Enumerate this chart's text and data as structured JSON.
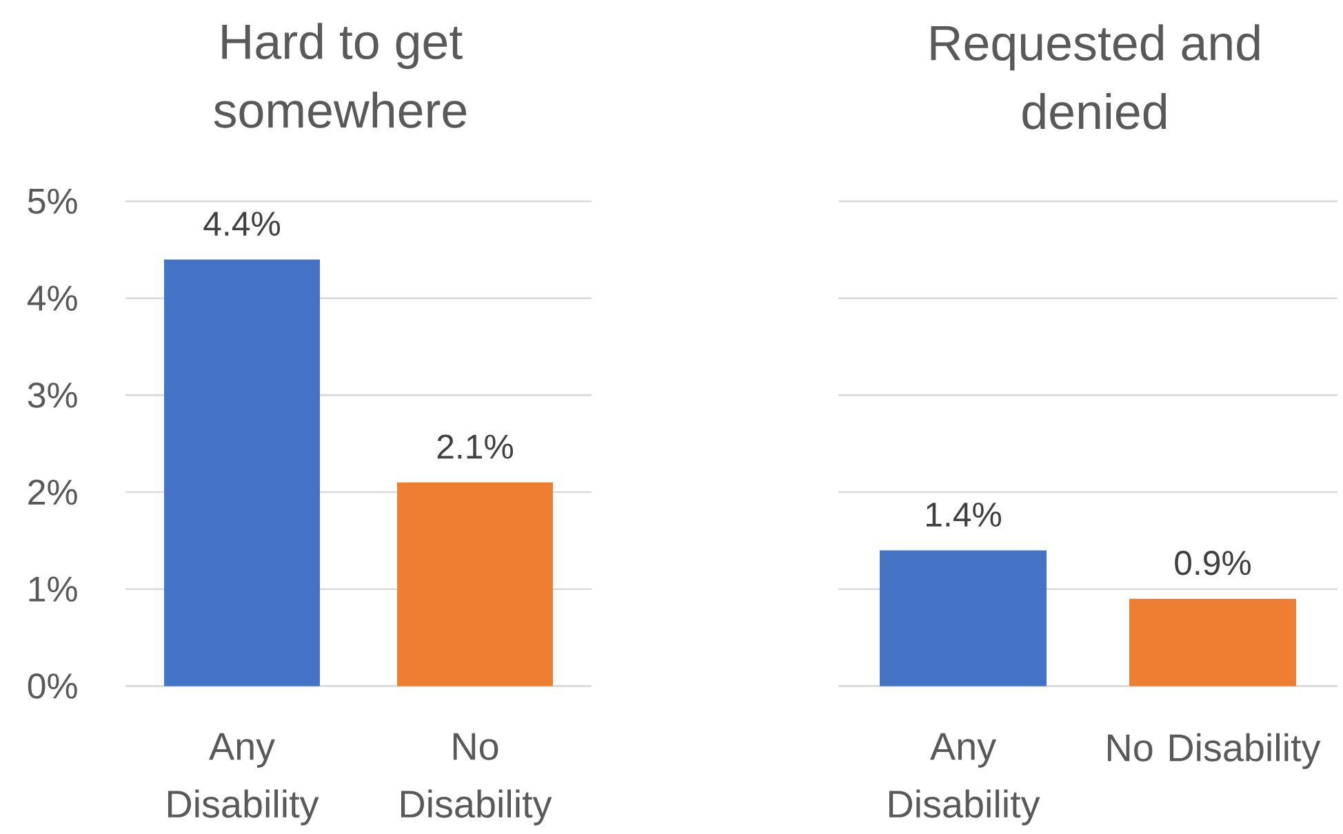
{
  "chart_data": [
    {
      "type": "bar",
      "title": "Hard to get somewhere",
      "categories": [
        "Any Disability",
        "No Disability"
      ],
      "values": [
        4.4,
        2.1
      ],
      "colors": [
        "#4472c4",
        "#ed7d31"
      ],
      "value_labels": [
        "4.4%",
        "2.1%"
      ],
      "ylim": [
        0,
        5
      ],
      "yticks": [
        {
          "value": 0,
          "label": "0%"
        },
        {
          "value": 1,
          "label": "1%"
        },
        {
          "value": 2,
          "label": "2%"
        },
        {
          "value": 3,
          "label": "3%"
        },
        {
          "value": 4,
          "label": "4%"
        },
        {
          "value": 5,
          "label": "5%"
        }
      ],
      "grid": "y"
    },
    {
      "type": "bar",
      "title": "Requested and denied",
      "categories": [
        "Any Disability",
        "No Disability"
      ],
      "values": [
        1.4,
        0.9
      ],
      "colors": [
        "#4472c4",
        "#ed7d31"
      ],
      "value_labels": [
        "1.4%",
        "0.9%"
      ],
      "ylim": [
        0,
        5
      ],
      "yticks": [
        {
          "value": 0,
          "label": null
        },
        {
          "value": 1,
          "label": null
        },
        {
          "value": 2,
          "label": null
        },
        {
          "value": 3,
          "label": null
        },
        {
          "value": 4,
          "label": null
        },
        {
          "value": 5,
          "label": null
        }
      ],
      "grid": "y",
      "tick_labels": "x"
    }
  ]
}
